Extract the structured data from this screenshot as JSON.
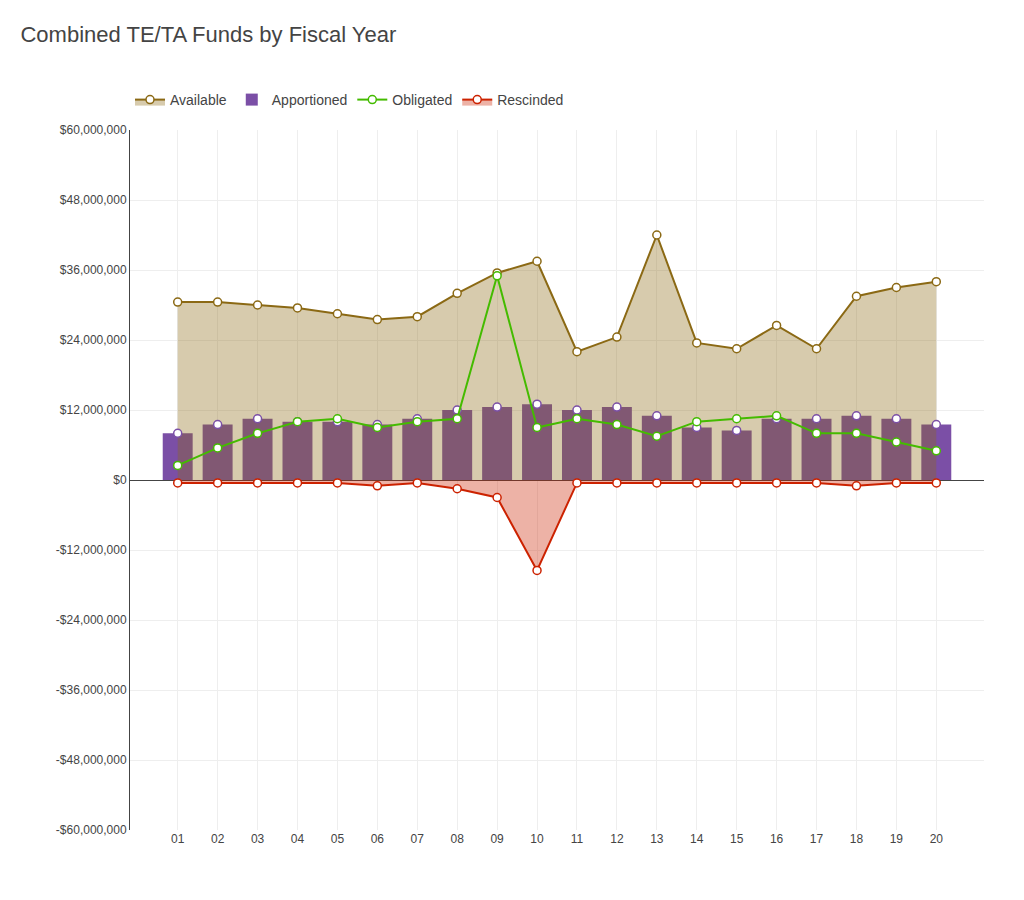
{
  "chart_data": {
    "type": "combo",
    "title": "Combined TE/TA Funds by Fiscal Year",
    "categories": [
      "01",
      "02",
      "03",
      "04",
      "05",
      "06",
      "07",
      "08",
      "09",
      "10",
      "11",
      "12",
      "13",
      "14",
      "15",
      "16",
      "17",
      "18",
      "19",
      "20"
    ],
    "series": [
      {
        "name": "Available",
        "type": "area",
        "color": "#8B6914",
        "marker": "circle",
        "values": [
          30500000,
          30500000,
          30000000,
          29500000,
          28500000,
          27500000,
          28000000,
          32000000,
          35500000,
          37500000,
          22000000,
          24500000,
          42000000,
          23500000,
          22500000,
          26500000,
          22500000,
          31500000,
          33000000,
          34000000
        ]
      },
      {
        "name": "Apportioned",
        "type": "bar",
        "color": "#7B4FA6",
        "marker": "circle",
        "values": [
          8000000,
          9500000,
          10500000,
          10000000,
          10000000,
          9500000,
          10500000,
          12000000,
          12500000,
          13000000,
          12000000,
          12500000,
          11000000,
          9000000,
          8500000,
          10500000,
          10500000,
          11000000,
          10500000,
          9500000
        ]
      },
      {
        "name": "Obligated",
        "type": "line",
        "color": "#44BB00",
        "marker": "circle",
        "values": [
          2500000,
          5500000,
          8000000,
          10000000,
          10500000,
          9000000,
          10000000,
          10500000,
          35000000,
          9000000,
          10500000,
          9500000,
          7500000,
          10000000,
          10500000,
          11000000,
          8000000,
          8000000,
          6500000,
          5000000
        ]
      },
      {
        "name": "Rescinded",
        "type": "area",
        "color": "#CC2200",
        "marker": "circle",
        "values": [
          -500000,
          -500000,
          -500000,
          -500000,
          -500000,
          -1000000,
          -500000,
          -1500000,
          -3000000,
          -15500000,
          -500000,
          -500000,
          -500000,
          -500000,
          -500000,
          -500000,
          -500000,
          -1000000,
          -500000,
          -500000
        ]
      }
    ],
    "ylim": [
      -60000000,
      60000000
    ],
    "yticks": [
      {
        "value": -60000000,
        "label": "-$60,000,000"
      },
      {
        "value": -48000000,
        "label": "-$48,000,000"
      },
      {
        "value": -36000000,
        "label": "-$36,000,000"
      },
      {
        "value": -24000000,
        "label": "-$24,000,000"
      },
      {
        "value": -12000000,
        "label": "-$12,000,000"
      },
      {
        "value": 0,
        "label": "$0"
      },
      {
        "value": 12000000,
        "label": "$12,000,000"
      },
      {
        "value": 24000000,
        "label": "$24,000,000"
      },
      {
        "value": 36000000,
        "label": "$36,000,000"
      },
      {
        "value": 48000000,
        "label": "$48,000,000"
      },
      {
        "value": 60000000,
        "label": "$60,000,000"
      }
    ],
    "grid": true,
    "legend": "top"
  }
}
